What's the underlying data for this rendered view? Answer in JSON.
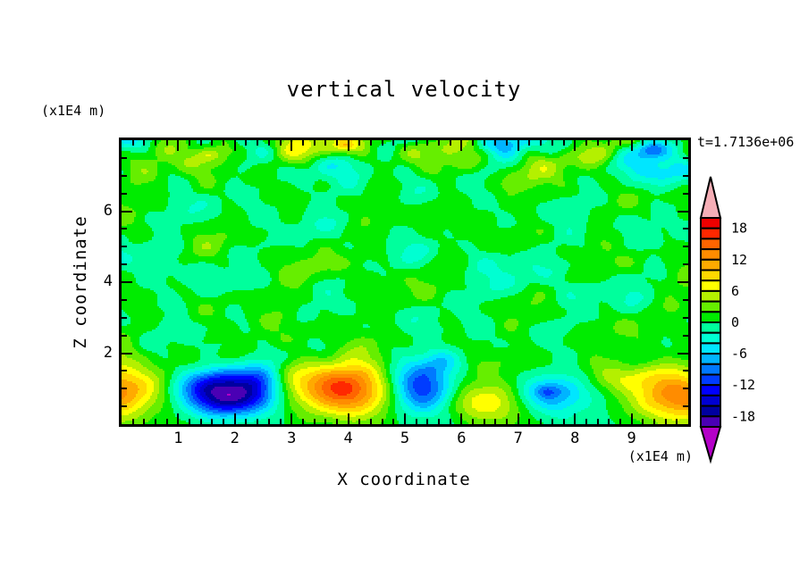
{
  "figure": {
    "title": "vertical velocity",
    "time_label": "t=1.7136e+06",
    "x_axis": {
      "label": "X coordinate",
      "units": "(x1E4 m)"
    },
    "z_axis": {
      "label": "Z coordinate",
      "units": "(x1E4 m)"
    }
  },
  "chart_data": {
    "type": "filled_contour",
    "title": "vertical velocity",
    "xlabel": "X coordinate",
    "ylabel": "Z coordinate",
    "x_units": "(x1E4 m)",
    "z_units": "(x1E4 m)",
    "time_annotation": "t=1.7136e+06",
    "x_range": [
      0,
      10
    ],
    "z_range": [
      0,
      8
    ],
    "x_major_ticks": [
      1,
      2,
      3,
      4,
      5,
      6,
      7,
      8,
      9
    ],
    "x_minor_step": 0.2,
    "z_major_ticks": [
      2,
      4,
      6
    ],
    "z_minor_step": 0.5,
    "contour_interval": 2,
    "level_min": -20,
    "level_max": 20,
    "colorbar_labels": [
      18,
      12,
      6,
      0,
      -6,
      -12,
      -18
    ],
    "palette": {
      "colors_low_to_high": [
        "#4A00B4",
        "#0000A0",
        "#0000D2",
        "#0000FF",
        "#003CFF",
        "#0078FF",
        "#00B4FF",
        "#00E6FF",
        "#00FFD2",
        "#00FF9C",
        "#00EC00",
        "#66EE00",
        "#B4F000",
        "#FFFF00",
        "#FFD800",
        "#FFAA00",
        "#FF8C00",
        "#FF6400",
        "#FF2800",
        "#EE0000"
      ],
      "under_color": "#B400C8",
      "over_color": "#F6AEB6",
      "frame_color": "#000000"
    },
    "background": {
      "bias": 0.2,
      "bias_bumps": [
        {
          "z": 2.0,
          "s": 0.5,
          "a": 0.5
        },
        {
          "z": 0.3,
          "s": 0.35,
          "a": 0.3
        }
      ],
      "amp": {
        "base": 0.55,
        "ramp_z0": 0.9,
        "ramp_z1": 2.1,
        "mid": 1.32,
        "top_a": 0.95,
        "top_z": 8.0,
        "top_s": 0.7
      },
      "modes": [
        [
          1.15,
          1.9,
          0.7,
          1.3,
          2.6,
          -0.8,
          0.5
        ],
        [
          0.85,
          3.4,
          -1.9,
          2.8,
          1.7,
          1.1,
          -1.0
        ],
        [
          0.5,
          6.1,
          3.4,
          0.7,
          0.0,
          0.0,
          0.0
        ],
        [
          0.45,
          4.7,
          -5.3,
          2.2,
          2.2,
          0.9,
          0.4
        ],
        [
          0.33,
          8.9,
          0.0,
          0.8,
          7.1,
          0.0,
          2.4
        ],
        [
          0.6,
          0.9,
          0.15,
          4.0,
          1.1,
          0.0,
          1.8
        ]
      ],
      "features": [
        [
          -0.2,
          0.95,
          0.6,
          0.5,
          13.5
        ],
        [
          1.55,
          1.2,
          0.42,
          0.35,
          -11.0
        ],
        [
          1.95,
          0.72,
          0.55,
          0.36,
          -16.0
        ],
        [
          2.45,
          1.28,
          0.3,
          0.3,
          -8.5
        ],
        [
          3.0,
          1.35,
          0.28,
          0.3,
          3.8
        ],
        [
          3.95,
          1.0,
          0.6,
          0.52,
          16.8
        ],
        [
          5.3,
          1.0,
          0.4,
          0.55,
          -12.5
        ],
        [
          5.62,
          1.8,
          0.26,
          0.28,
          -4.5
        ],
        [
          6.45,
          0.62,
          0.45,
          0.4,
          8.8
        ],
        [
          7.65,
          0.85,
          0.52,
          0.42,
          -8.5
        ],
        [
          7.5,
          0.92,
          0.14,
          0.12,
          -3.5
        ],
        [
          8.95,
          1.35,
          0.5,
          0.3,
          4.2
        ],
        [
          9.85,
          0.82,
          0.58,
          0.5,
          13.0
        ],
        [
          0.12,
          7.8,
          0.3,
          0.3,
          -5.0
        ],
        [
          1.5,
          7.62,
          0.55,
          0.3,
          4.4
        ],
        [
          1.55,
          7.6,
          0.13,
          0.1,
          2.2
        ],
        [
          2.4,
          7.95,
          0.16,
          0.12,
          3.0
        ],
        [
          3.0,
          7.75,
          0.42,
          0.26,
          4.4
        ],
        [
          3.95,
          7.8,
          0.45,
          0.26,
          5.0
        ],
        [
          3.95,
          7.85,
          0.1,
          0.09,
          3.0
        ],
        [
          6.8,
          7.9,
          0.4,
          0.26,
          -4.0
        ],
        [
          8.2,
          7.55,
          0.4,
          0.28,
          3.6
        ],
        [
          9.35,
          7.72,
          0.17,
          0.15,
          -6.5
        ],
        [
          9.68,
          7.05,
          0.33,
          0.3,
          -4.5
        ]
      ]
    }
  }
}
